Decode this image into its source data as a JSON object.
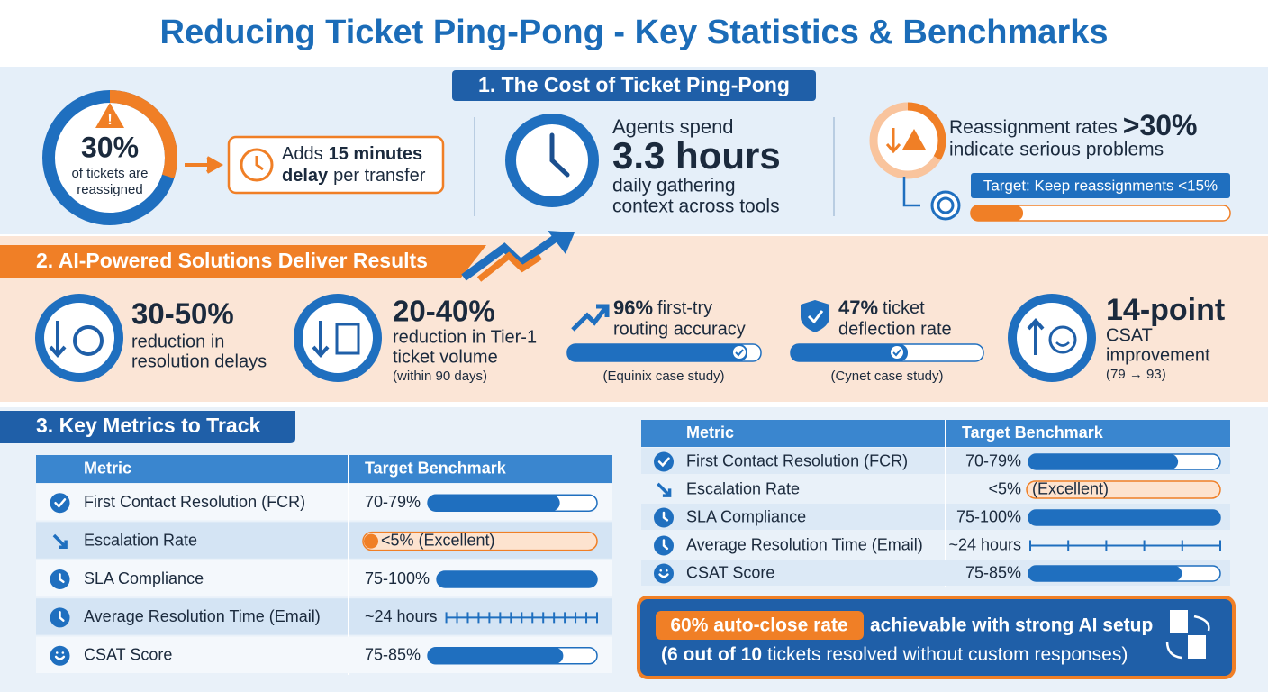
{
  "title": "Reducing Ticket Ping-Pong - Key Statistics & Benchmarks",
  "section1": {
    "heading": "1. The Cost of Ticket Ping-Pong",
    "reassigned": {
      "value": "30%",
      "lines": [
        "of tickets are",
        "reassigned"
      ]
    },
    "delay": {
      "line1": {
        "text": "Adds",
        "bold": "15 minutes"
      },
      "line2": {
        "bold": "delay",
        "text": "per transfer"
      }
    },
    "agents": {
      "lead": "Agents spend",
      "value": "3.3 hours",
      "lines": [
        "daily gathering",
        "context across tools"
      ]
    },
    "reassignment": {
      "lead": "Reassignment rates",
      "value": ">30%",
      "line2": "indicate serious problems",
      "target": "Target: Keep reassignments <15%"
    }
  },
  "section2": {
    "heading": "2. AI-Powered Solutions Deliver Results",
    "items": [
      {
        "value": "30-50%",
        "lines": [
          "reduction in",
          "resolution delays"
        ]
      },
      {
        "value": "20-40%",
        "lines": [
          "reduction in Tier-1",
          "ticket volume"
        ],
        "note": "(within 90 days)"
      },
      {
        "value": "96%",
        "lines": [
          "first-try",
          "routing accuracy"
        ],
        "note": "(Equinix case study)"
      },
      {
        "value": "47%",
        "lines": [
          "ticket",
          "deflection rate"
        ],
        "note": "(Cynet case study)"
      },
      {
        "value": "14-point",
        "lines": [
          "CSAT",
          "improvement"
        ],
        "note": "(79 → 93)"
      }
    ]
  },
  "section3": {
    "heading": "3. Key Metrics to Track",
    "left_table": {
      "header": [
        "Metric",
        "Target Benchmark"
      ],
      "rows": [
        {
          "metric": "First Contact Resolution (FCR)",
          "benchmark": "70-79%"
        },
        {
          "metric": "Escalation Rate",
          "benchmark": "<5% (Excellent)"
        },
        {
          "metric": "SLA Compliance",
          "benchmark": "75-100%"
        },
        {
          "metric": "Average Resolution Time (Email)",
          "benchmark": "~24 hours"
        },
        {
          "metric": "CSAT Score",
          "benchmark": "75-85%"
        }
      ]
    },
    "right_table": {
      "header": [
        "Metric",
        "Target Benchmark"
      ],
      "rows": [
        {
          "metric": "First Contact Resolution (FCR)",
          "benchmark": "70-79%"
        },
        {
          "metric": "Escalation Rate",
          "benchmark": "<5%",
          "note": "(Excellent)"
        },
        {
          "metric": "SLA Compliance",
          "benchmark": "75-100%"
        },
        {
          "metric": "Average Resolution Time (Email)",
          "benchmark": "~24 hours"
        },
        {
          "metric": "CSAT Score",
          "benchmark": "75-85%"
        }
      ]
    },
    "callout": {
      "highlight": "60% auto-close rate",
      "text": "achievable with strong AI setup",
      "line2_bold": "(6 out of 10",
      "line2": "tickets resolved without custom responses)"
    }
  }
}
